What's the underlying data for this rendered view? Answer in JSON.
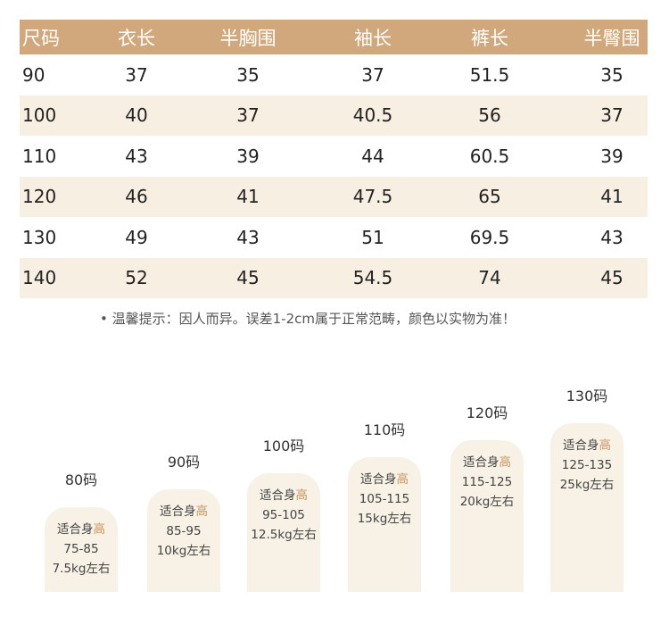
{
  "table": {
    "headers": [
      "尺码",
      "衣长",
      "半胸围",
      "袖长",
      "裤长",
      "半臀围"
    ],
    "rows": [
      [
        "90",
        "37",
        "35",
        "37",
        "51.5",
        "35"
      ],
      [
        "100",
        "40",
        "37",
        "40.5",
        "56",
        "37"
      ],
      [
        "110",
        "43",
        "39",
        "44",
        "60.5",
        "39"
      ],
      [
        "120",
        "46",
        "41",
        "47.5",
        "65",
        "41"
      ],
      [
        "130",
        "49",
        "43",
        "51",
        "69.5",
        "43"
      ],
      [
        "140",
        "52",
        "45",
        "54.5",
        "74",
        "45"
      ]
    ]
  },
  "note": "• 温馨提示：因人而异。误差1-2cm属于正常范畴，颜色以实物为准！",
  "cards": [
    {
      "size": "80码",
      "label_a": "适合身",
      "label_b": "高",
      "height": "75-85",
      "weight": "7.5kg左右"
    },
    {
      "size": "90码",
      "label_a": "适合身",
      "label_b": "高",
      "height": "85-95",
      "weight": "10kg左右"
    },
    {
      "size": "100码",
      "label_a": "适合身",
      "label_b": "高",
      "height": "95-105",
      "weight": "12.5kg左右"
    },
    {
      "size": "110码",
      "label_a": "适合身",
      "label_b": "高",
      "height": "105-115",
      "weight": "15kg左右"
    },
    {
      "size": "120码",
      "label_a": "适合身",
      "label_b": "高",
      "height": "115-125",
      "weight": "20kg左右"
    },
    {
      "size": "130码",
      "label_a": "适合身",
      "label_b": "高",
      "height": "125-135",
      "weight": "25kg左右"
    }
  ],
  "colors": {
    "header": "#d0a87c",
    "alt_row": "#f8efe3",
    "card": "#f8f1e6",
    "accent": "#c9955e"
  }
}
